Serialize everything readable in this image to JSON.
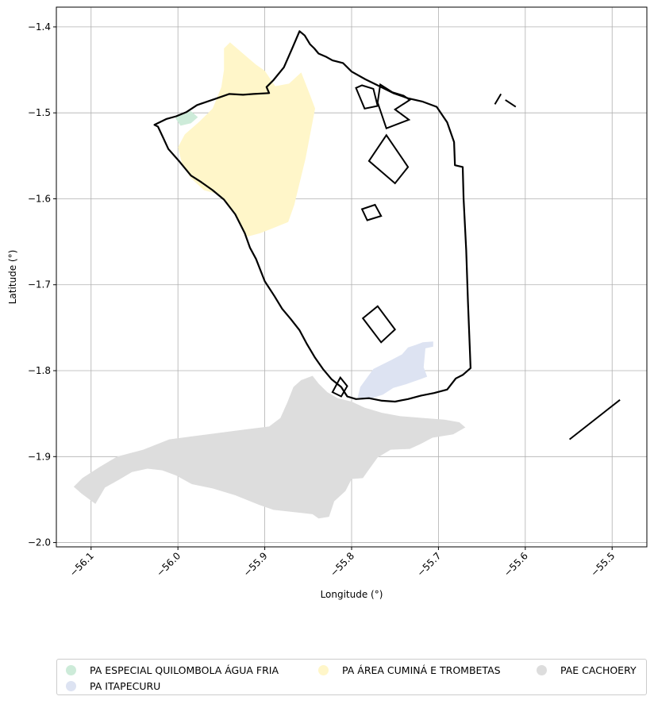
{
  "chart_data": {
    "type": "map",
    "xlabel": "Longitude (°)",
    "ylabel": "Latitude (°)",
    "xlim": [
      -56.14,
      -55.46
    ],
    "ylim": [
      -2.005,
      -1.377
    ],
    "grid": true,
    "xticks": [
      -56.1,
      -56.0,
      -55.9,
      -55.8,
      -55.7,
      -55.6,
      -55.5
    ],
    "xtick_labels": [
      "−56.1",
      "−56.0",
      "−55.9",
      "−55.8",
      "−55.7",
      "−55.6",
      "−55.5"
    ],
    "yticks": [
      -1.4,
      -1.5,
      -1.6,
      -1.7,
      -1.8,
      -1.9,
      -2.0
    ],
    "ytick_labels": [
      "−1.4",
      "−1.5",
      "−1.6",
      "−1.7",
      "−1.8",
      "−1.9",
      "−2.0"
    ],
    "legend_placement": "bottom",
    "settlements": [
      {
        "name": "PA ESPECIAL QUILOMBOLA ÁGUA FRIA",
        "color": "#cdebd9",
        "polygon": [
          [
            -56.003,
            -1.506
          ],
          [
            -55.995,
            -1.5
          ],
          [
            -55.985,
            -1.498
          ],
          [
            -55.977,
            -1.505
          ],
          [
            -55.985,
            -1.512
          ],
          [
            -55.997,
            -1.515
          ]
        ]
      },
      {
        "name": "PA ITAPECURU",
        "color": "#dde3f2",
        "polygon": [
          [
            -55.79,
            -1.819
          ],
          [
            -55.775,
            -1.798
          ],
          [
            -55.755,
            -1.788
          ],
          [
            -55.742,
            -1.781
          ],
          [
            -55.735,
            -1.773
          ],
          [
            -55.726,
            -1.77
          ],
          [
            -55.718,
            -1.767
          ],
          [
            -55.706,
            -1.766
          ],
          [
            -55.706,
            -1.772
          ],
          [
            -55.715,
            -1.774
          ],
          [
            -55.717,
            -1.796
          ],
          [
            -55.713,
            -1.807
          ],
          [
            -55.721,
            -1.81
          ],
          [
            -55.738,
            -1.816
          ],
          [
            -55.752,
            -1.82
          ],
          [
            -55.764,
            -1.828
          ],
          [
            -55.78,
            -1.833
          ],
          [
            -55.793,
            -1.831
          ]
        ]
      },
      {
        "name": "PA ÁREA CUMINÁ E TROMBETAS",
        "color": "#fff6c9",
        "polygon": [
          [
            -55.947,
            -1.425
          ],
          [
            -55.94,
            -1.418
          ],
          [
            -55.925,
            -1.431
          ],
          [
            -55.91,
            -1.444
          ],
          [
            -55.9,
            -1.451
          ],
          [
            -55.888,
            -1.469
          ],
          [
            -55.872,
            -1.466
          ],
          [
            -55.858,
            -1.453
          ],
          [
            -55.848,
            -1.479
          ],
          [
            -55.842,
            -1.495
          ],
          [
            -55.853,
            -1.553
          ],
          [
            -55.866,
            -1.607
          ],
          [
            -55.873,
            -1.627
          ],
          [
            -55.89,
            -1.634
          ],
          [
            -55.905,
            -1.64
          ],
          [
            -55.92,
            -1.644
          ],
          [
            -55.928,
            -1.632
          ],
          [
            -55.935,
            -1.618
          ],
          [
            -55.952,
            -1.595
          ],
          [
            -55.97,
            -1.59
          ],
          [
            -55.985,
            -1.576
          ],
          [
            -55.995,
            -1.56
          ],
          [
            -56.0,
            -1.54
          ],
          [
            -55.992,
            -1.525
          ],
          [
            -55.975,
            -1.51
          ],
          [
            -55.96,
            -1.495
          ],
          [
            -55.95,
            -1.47
          ],
          [
            -55.947,
            -1.45
          ]
        ]
      },
      {
        "name": "PAE CACHOERY",
        "color": "#dddddd",
        "polygon": [
          [
            -56.111,
            -1.943
          ],
          [
            -56.095,
            -1.955
          ],
          [
            -56.084,
            -1.936
          ],
          [
            -56.068,
            -1.927
          ],
          [
            -56.053,
            -1.918
          ],
          [
            -56.035,
            -1.914
          ],
          [
            -56.018,
            -1.916
          ],
          [
            -56.002,
            -1.922
          ],
          [
            -55.984,
            -1.932
          ],
          [
            -55.96,
            -1.937
          ],
          [
            -55.934,
            -1.945
          ],
          [
            -55.907,
            -1.956
          ],
          [
            -55.89,
            -1.962
          ],
          [
            -55.862,
            -1.965
          ],
          [
            -55.845,
            -1.967
          ],
          [
            -55.838,
            -1.972
          ],
          [
            -55.826,
            -1.97
          ],
          [
            -55.82,
            -1.952
          ],
          [
            -55.807,
            -1.94
          ],
          [
            -55.8,
            -1.926
          ],
          [
            -55.787,
            -1.925
          ],
          [
            -55.78,
            -1.915
          ],
          [
            -55.77,
            -1.901
          ],
          [
            -55.755,
            -1.892
          ],
          [
            -55.733,
            -1.891
          ],
          [
            -55.72,
            -1.885
          ],
          [
            -55.707,
            -1.878
          ],
          [
            -55.683,
            -1.874
          ],
          [
            -55.669,
            -1.866
          ],
          [
            -55.676,
            -1.86
          ],
          [
            -55.693,
            -1.857
          ],
          [
            -55.718,
            -1.855
          ],
          [
            -55.744,
            -1.853
          ],
          [
            -55.765,
            -1.849
          ],
          [
            -55.785,
            -1.843
          ],
          [
            -55.8,
            -1.836
          ],
          [
            -55.816,
            -1.832
          ],
          [
            -55.828,
            -1.825
          ],
          [
            -55.838,
            -1.815
          ],
          [
            -55.845,
            -1.806
          ],
          [
            -55.858,
            -1.811
          ],
          [
            -55.867,
            -1.819
          ],
          [
            -55.874,
            -1.837
          ],
          [
            -55.882,
            -1.855
          ],
          [
            -55.895,
            -1.865
          ],
          [
            -55.92,
            -1.868
          ],
          [
            -55.95,
            -1.872
          ],
          [
            -55.98,
            -1.876
          ],
          [
            -56.01,
            -1.88
          ],
          [
            -56.04,
            -1.892
          ],
          [
            -56.07,
            -1.9
          ],
          [
            -56.09,
            -1.912
          ],
          [
            -56.11,
            -1.925
          ],
          [
            -56.12,
            -1.935
          ]
        ]
      }
    ],
    "boundary_outline": [
      [
        -55.86,
        -1.405
      ],
      [
        -55.854,
        -1.41
      ],
      [
        -55.848,
        -1.42
      ],
      [
        -55.843,
        -1.425
      ],
      [
        -55.838,
        -1.431
      ],
      [
        -55.829,
        -1.435
      ],
      [
        -55.822,
        -1.439
      ],
      [
        -55.81,
        -1.442
      ],
      [
        -55.8,
        -1.452
      ],
      [
        -55.784,
        -1.461
      ],
      [
        -55.77,
        -1.468
      ],
      [
        -55.752,
        -1.477
      ],
      [
        -55.735,
        -1.483
      ],
      [
        -55.718,
        -1.487
      ],
      [
        -55.702,
        -1.493
      ],
      [
        -55.69,
        -1.511
      ],
      [
        -55.682,
        -1.534
      ],
      [
        -55.681,
        -1.561
      ],
      [
        -55.672,
        -1.563
      ],
      [
        -55.671,
        -1.6
      ],
      [
        -55.668,
        -1.66
      ],
      [
        -55.666,
        -1.72
      ],
      [
        -55.664,
        -1.771
      ],
      [
        -55.663,
        -1.797
      ],
      [
        -55.672,
        -1.805
      ],
      [
        -55.68,
        -1.809
      ],
      [
        -55.69,
        -1.822
      ],
      [
        -55.705,
        -1.826
      ],
      [
        -55.72,
        -1.829
      ],
      [
        -55.735,
        -1.833
      ],
      [
        -55.75,
        -1.836
      ],
      [
        -55.765,
        -1.835
      ],
      [
        -55.78,
        -1.832
      ],
      [
        -55.795,
        -1.833
      ],
      [
        -55.805,
        -1.83
      ],
      [
        -55.812,
        -1.819
      ],
      [
        -55.823,
        -1.81
      ],
      [
        -55.833,
        -1.798
      ],
      [
        -55.842,
        -1.785
      ],
      [
        -55.852,
        -1.768
      ],
      [
        -55.86,
        -1.753
      ],
      [
        -55.87,
        -1.74
      ],
      [
        -55.88,
        -1.728
      ],
      [
        -55.889,
        -1.713
      ],
      [
        -55.9,
        -1.696
      ],
      [
        -55.91,
        -1.67
      ],
      [
        -55.917,
        -1.657
      ],
      [
        -55.923,
        -1.64
      ],
      [
        -55.934,
        -1.618
      ],
      [
        -55.947,
        -1.601
      ],
      [
        -55.96,
        -1.59
      ],
      [
        -55.974,
        -1.58
      ],
      [
        -55.985,
        -1.573
      ],
      [
        -55.998,
        -1.557
      ],
      [
        -56.011,
        -1.542
      ],
      [
        -56.017,
        -1.529
      ],
      [
        -56.023,
        -1.516
      ],
      [
        -56.027,
        -1.514
      ],
      [
        -56.013,
        -1.507
      ],
      [
        -56.002,
        -1.504
      ],
      [
        -55.99,
        -1.499
      ],
      [
        -55.978,
        -1.491
      ],
      [
        -55.958,
        -1.484
      ],
      [
        -55.941,
        -1.478
      ],
      [
        -55.925,
        -1.479
      ],
      [
        -55.913,
        -1.478
      ],
      [
        -55.895,
        -1.477
      ],
      [
        -55.898,
        -1.47
      ],
      [
        -55.89,
        -1.462
      ],
      [
        -55.878,
        -1.447
      ],
      [
        -55.868,
        -1.424
      ]
    ],
    "parcel_outlines": [
      [
        [
          -55.767,
          -1.467
        ],
        [
          -55.753,
          -1.476
        ],
        [
          -55.74,
          -1.48
        ],
        [
          -55.733,
          -1.485
        ],
        [
          -55.75,
          -1.496
        ],
        [
          -55.734,
          -1.508
        ],
        [
          -55.76,
          -1.518
        ],
        [
          -55.77,
          -1.488
        ]
      ],
      [
        [
          -55.788,
          -1.468
        ],
        [
          -55.775,
          -1.472
        ],
        [
          -55.77,
          -1.492
        ],
        [
          -55.785,
          -1.495
        ],
        [
          -55.795,
          -1.471
        ]
      ],
      [
        [
          -55.78,
          -1.556
        ],
        [
          -55.76,
          -1.526
        ],
        [
          -55.735,
          -1.563
        ],
        [
          -55.75,
          -1.582
        ]
      ],
      [
        [
          -55.773,
          -1.607
        ],
        [
          -55.766,
          -1.62
        ],
        [
          -55.782,
          -1.625
        ],
        [
          -55.788,
          -1.612
        ]
      ],
      [
        [
          -55.787,
          -1.739
        ],
        [
          -55.77,
          -1.725
        ],
        [
          -55.75,
          -1.752
        ],
        [
          -55.766,
          -1.767
        ]
      ],
      [
        [
          -55.822,
          -1.825
        ],
        [
          -55.813,
          -1.808
        ],
        [
          -55.805,
          -1.818
        ],
        [
          -55.812,
          -1.83
        ]
      ]
    ],
    "line_segments": [
      [
        [
          -55.549,
          -1.88
        ],
        [
          -55.491,
          -1.834
        ]
      ],
      [
        [
          -55.628,
          -1.478
        ],
        [
          -55.635,
          -1.49
        ]
      ],
      [
        [
          -55.611,
          -1.493
        ],
        [
          -55.623,
          -1.485
        ]
      ]
    ]
  },
  "legend": {
    "items": [
      {
        "label": "PA ESPECIAL QUILOMBOLA ÁGUA FRIA",
        "color": "#cdebd9"
      },
      {
        "label": "PA ÁREA CUMINÁ E TROMBETAS",
        "color": "#fff6c9"
      },
      {
        "label": "PAE CACHOERY",
        "color": "#dddddd"
      },
      {
        "label": "PA ITAPECURU",
        "color": "#dde3f2"
      }
    ]
  }
}
